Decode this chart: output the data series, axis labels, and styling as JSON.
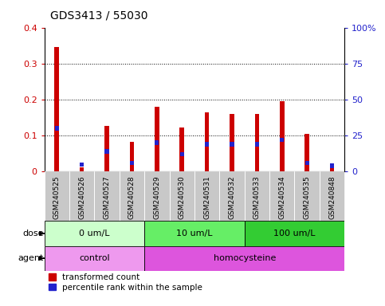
{
  "title": "GDS3413 / 55030",
  "samples": [
    "GSM240525",
    "GSM240526",
    "GSM240527",
    "GSM240528",
    "GSM240529",
    "GSM240530",
    "GSM240531",
    "GSM240532",
    "GSM240533",
    "GSM240534",
    "GSM240535",
    "GSM240848"
  ],
  "red_values": [
    0.345,
    0.012,
    0.127,
    0.082,
    0.18,
    0.122,
    0.165,
    0.16,
    0.161,
    0.196,
    0.105,
    0.012
  ],
  "blue_values_pct": [
    30,
    5,
    14,
    6,
    20,
    12,
    19,
    19,
    19,
    22,
    6,
    4
  ],
  "ylim_left": [
    0,
    0.4
  ],
  "ylim_right": [
    0,
    100
  ],
  "yticks_left": [
    0,
    0.1,
    0.2,
    0.3,
    0.4
  ],
  "yticks_right": [
    0,
    25,
    50,
    75,
    100
  ],
  "ytick_labels_right": [
    "0",
    "25",
    "50",
    "75",
    "100%"
  ],
  "red_color": "#cc0000",
  "blue_color": "#2222cc",
  "label_bg_color": "#c8c8c8",
  "dose_groups": [
    {
      "label": "0 um/L",
      "start": 0,
      "end": 4,
      "color": "#ccffcc"
    },
    {
      "label": "10 um/L",
      "start": 4,
      "end": 8,
      "color": "#66ee66"
    },
    {
      "label": "100 um/L",
      "start": 8,
      "end": 12,
      "color": "#33cc33"
    }
  ],
  "agent_groups": [
    {
      "label": "control",
      "start": 0,
      "end": 4,
      "color": "#ee99ee"
    },
    {
      "label": "homocysteine",
      "start": 4,
      "end": 12,
      "color": "#dd55dd"
    }
  ],
  "legend_red": "transformed count",
  "legend_blue": "percentile rank within the sample",
  "bar_width": 0.18
}
